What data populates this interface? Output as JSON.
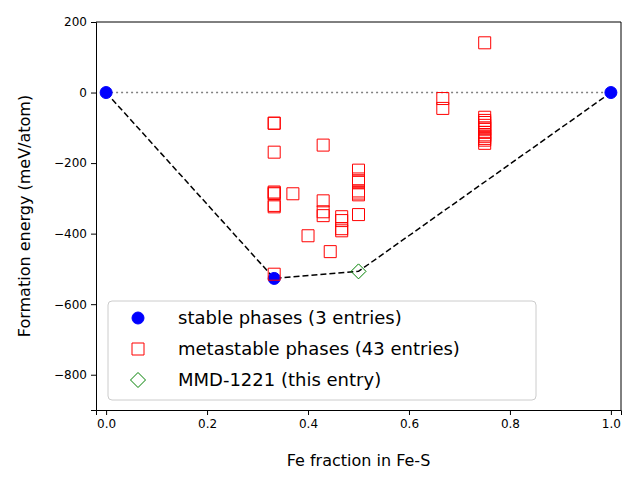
{
  "chart_data": {
    "type": "scatter",
    "x_label": "Fe fraction in Fe-S",
    "y_label": "Formation energy (meV/atom)",
    "xlim": [
      -0.02,
      1.02
    ],
    "ylim": [
      -900,
      200
    ],
    "xticks": [
      {
        "value": 0,
        "label": "0.0"
      },
      0.2,
      0.4,
      0.6,
      0.8,
      {
        "value": 1,
        "label": "1.0"
      }
    ],
    "yticks": [
      {
        "value": -800,
        "label": "−800"
      },
      {
        "value": -600,
        "label": "−600"
      },
      {
        "value": -400,
        "label": "−400"
      },
      {
        "value": -200,
        "label": "−200"
      },
      0,
      200
    ],
    "legend": "lower left",
    "grid": false,
    "series": [
      {
        "type": "line",
        "line_style": "dotted",
        "color": "#808080",
        "x": [
          0,
          1
        ],
        "values": [
          0,
          0
        ]
      },
      {
        "type": "line",
        "line_style": "dashed",
        "color": "#000000",
        "x": [
          0,
          0.333,
          0.5,
          1
        ],
        "values": [
          0,
          -527,
          -507,
          0
        ]
      },
      {
        "name": "stable phases (3 entries)",
        "type": "scatter",
        "marker": "circle",
        "color": "#0000ff",
        "x": [
          0,
          0.333,
          1
        ],
        "values": [
          0,
          -527,
          0
        ]
      },
      {
        "name": "metastable phases (43 entries)",
        "type": "scatter",
        "marker": "square",
        "color": "#ff0000",
        "x": [
          0.333,
          0.333,
          0.333,
          0.333,
          0.333,
          0.333,
          0.333,
          0.333,
          0.333,
          0.37,
          0.43,
          0.43,
          0.43,
          0.43,
          0.4,
          0.444,
          0.4667,
          0.4667,
          0.4667,
          0.4667,
          0.5,
          0.5,
          0.5,
          0.5,
          0.5,
          0.5,
          0.5,
          0.5,
          0.667,
          0.667,
          0.75,
          0.75,
          0.75,
          0.75,
          0.75,
          0.75,
          0.75,
          0.75,
          0.75,
          0.75,
          0.75,
          0.75,
          0.75
        ],
        "values": [
          -87,
          -87,
          -169,
          -282,
          -287,
          -324,
          -515,
          -285,
          -320,
          -287,
          -149,
          -307,
          -338,
          -349,
          -406,
          -451,
          -352,
          -363,
          -386,
          -392,
          -220,
          -245,
          -254,
          -279,
          -290,
          -346,
          -250,
          -285,
          -17,
          -45,
          141,
          -70,
          -79,
          -93,
          -104,
          -113,
          -124,
          -135,
          -144,
          -85,
          -100,
          -120,
          -130
        ]
      },
      {
        "name": "MMD-1221 (this entry)",
        "type": "scatter",
        "marker": "diamond",
        "color": "#008000",
        "x": [
          0.5
        ],
        "values": [
          -507
        ]
      }
    ]
  }
}
